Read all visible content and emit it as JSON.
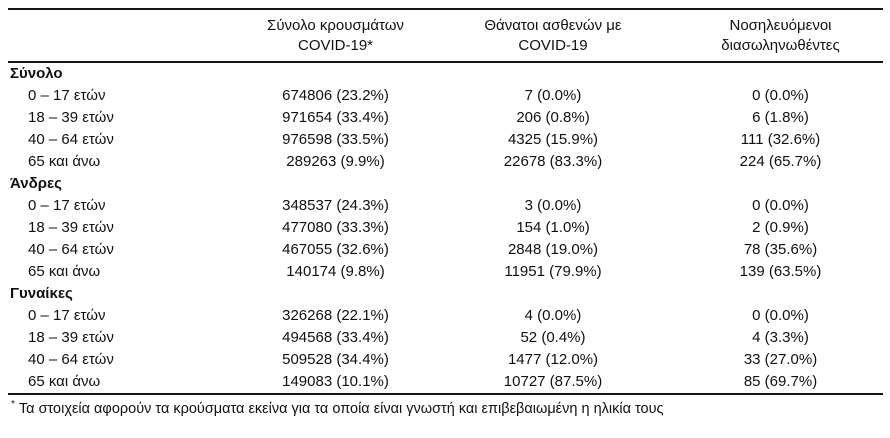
{
  "table": {
    "columns": {
      "cases": {
        "line1": "Σύνολο κρουσμάτων",
        "line2": "COVID-19*"
      },
      "deaths": {
        "line1": "Θάνατοι ασθενών με",
        "line2": "COVID-19"
      },
      "intubated": {
        "line1": "Νοσηλευόμενοι",
        "line2": "διασωληνωθέντες"
      }
    },
    "sections": [
      {
        "label": "Σύνολο",
        "rows": [
          {
            "age": "0 – 17 ετών",
            "cases": "674806 (23.2%)",
            "deaths": "7 (0.0%)",
            "intubated": "0 (0.0%)"
          },
          {
            "age": "18 – 39 ετών",
            "cases": "971654 (33.4%)",
            "deaths": "206 (0.8%)",
            "intubated": "6 (1.8%)"
          },
          {
            "age": "40 – 64 ετών",
            "cases": "976598 (33.5%)",
            "deaths": "4325 (15.9%)",
            "intubated": "111 (32.6%)"
          },
          {
            "age": "65 και άνω",
            "cases": "289263 (9.9%)",
            "deaths": "22678 (83.3%)",
            "intubated": "224 (65.7%)"
          }
        ]
      },
      {
        "label": "Άνδρες",
        "rows": [
          {
            "age": "0 – 17 ετών",
            "cases": "348537 (24.3%)",
            "deaths": "3 (0.0%)",
            "intubated": "0 (0.0%)"
          },
          {
            "age": "18 – 39 ετών",
            "cases": "477080 (33.3%)",
            "deaths": "154 (1.0%)",
            "intubated": "2 (0.9%)"
          },
          {
            "age": "40 – 64 ετών",
            "cases": "467055 (32.6%)",
            "deaths": "2848 (19.0%)",
            "intubated": "78 (35.6%)"
          },
          {
            "age": "65 και άνω",
            "cases": "140174 (9.8%)",
            "deaths": "11951 (79.9%)",
            "intubated": "139 (63.5%)"
          }
        ]
      },
      {
        "label": "Γυναίκες",
        "rows": [
          {
            "age": "0 – 17 ετών",
            "cases": "326268 (22.1%)",
            "deaths": "4 (0.0%)",
            "intubated": "0 (0.0%)"
          },
          {
            "age": "18 – 39 ετών",
            "cases": "494568 (33.4%)",
            "deaths": "52 (0.4%)",
            "intubated": "4 (3.3%)"
          },
          {
            "age": "40 – 64 ετών",
            "cases": "509528 (34.4%)",
            "deaths": "1477 (12.0%)",
            "intubated": "33 (27.0%)"
          },
          {
            "age": "65 και άνω",
            "cases": "149083 (10.1%)",
            "deaths": "10727 (87.5%)",
            "intubated": "85 (69.7%)"
          }
        ]
      }
    ],
    "footnote": {
      "marker": "*",
      "text": "Τα στοιχεία αφορούν τα κρούσματα εκείνα για τα οποία είναι γνωστή και επιβεβαιωμένη η ηλικία τους"
    }
  }
}
